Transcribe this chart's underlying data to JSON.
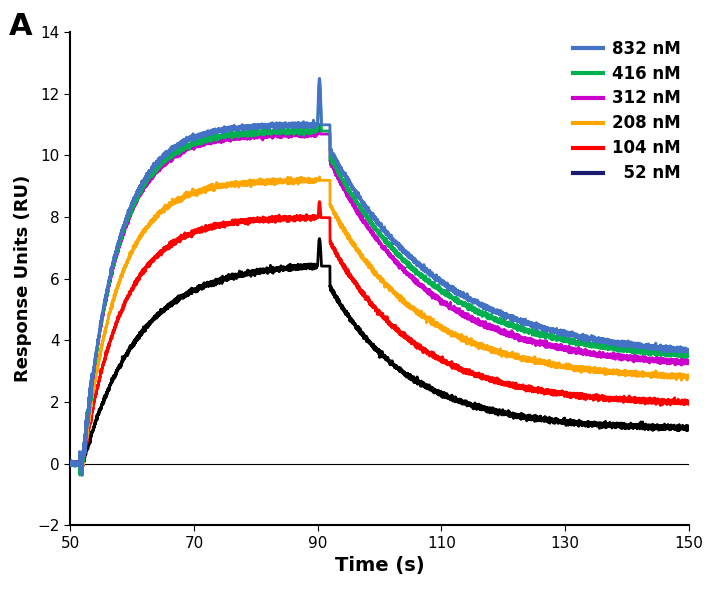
{
  "xlabel": "Time (s)",
  "ylabel": "Response Units (RU)",
  "xlim": [
    50,
    150
  ],
  "ylim": [
    -2,
    14
  ],
  "xticks": [
    50,
    70,
    90,
    110,
    130,
    150
  ],
  "yticks": [
    -2,
    0,
    2,
    4,
    6,
    8,
    10,
    12,
    14
  ],
  "concentrations": [
    "832 nM",
    "416 nM",
    "312 nM",
    "208 nM",
    "104 nM",
    "  52 nM"
  ],
  "plot_colors": [
    "#4472C4",
    "#00B050",
    "#CC00CC",
    "#FFA500",
    "#FF0000",
    "#000000"
  ],
  "legend_colors": [
    "#4472C4",
    "#00B050",
    "#CC00CC",
    "#FFA500",
    "#FF0000",
    "#1A1A6E"
  ],
  "assoc_start": 52.0,
  "dissoc_start": 90.0,
  "t_end": 150.0,
  "plateau_values": [
    11.0,
    10.8,
    10.7,
    9.2,
    8.0,
    6.5
  ],
  "spike_extra": [
    1.5,
    1.5,
    0.3,
    0.1,
    0.5,
    0.8
  ],
  "end_values": [
    3.4,
    3.3,
    3.1,
    2.7,
    1.9,
    1.1
  ],
  "tau_on_values": [
    5.5,
    5.5,
    5.5,
    5.8,
    6.5,
    9.0
  ],
  "tau_off_values": [
    18.0,
    17.0,
    16.0,
    15.0,
    14.0,
    13.0
  ],
  "lw": 2.0,
  "panel_label": "A",
  "figsize": [
    7.17,
    5.89
  ],
  "dpi": 100
}
